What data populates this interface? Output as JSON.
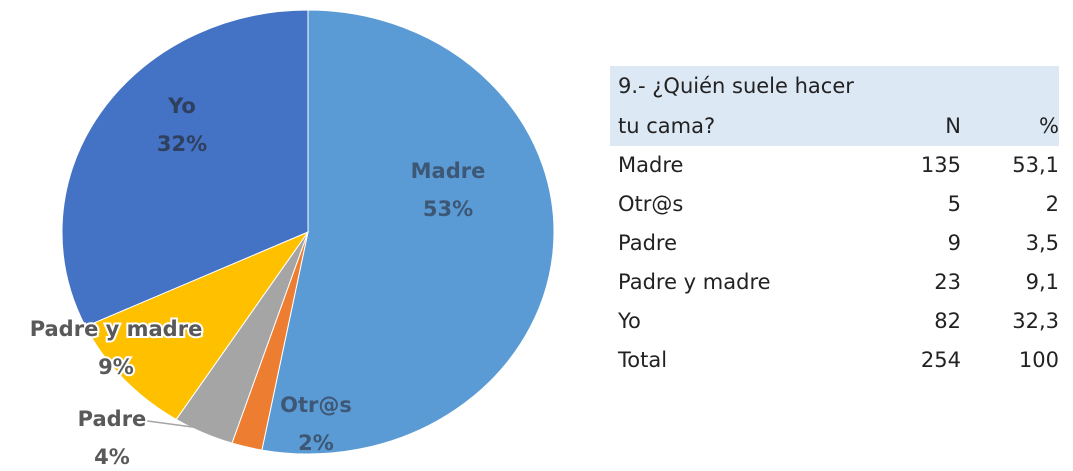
{
  "chart_data": {
    "type": "pie",
    "categories": [
      "Madre",
      "Otr@s",
      "Padre",
      "Padre y madre",
      "Yo"
    ],
    "values": [
      53,
      2,
      4,
      9,
      32
    ],
    "value_labels": [
      "53%",
      "2%",
      "4%",
      "9%",
      "32%"
    ],
    "colors": [
      "#5b9bd5",
      "#ed7d31",
      "#a5a5a5",
      "#ffc000",
      "#4472c4"
    ]
  },
  "table": {
    "header": [
      "9.- ¿Quién suele hacer tu cama?",
      "N",
      "%"
    ],
    "rows": [
      [
        "Madre",
        "135",
        "53,1"
      ],
      [
        "Otr@s",
        "5",
        "2"
      ],
      [
        "Padre",
        "9",
        "3,5"
      ],
      [
        "Padre y madre",
        "23",
        "9,1"
      ],
      [
        "Yo",
        "82",
        "32,3"
      ],
      [
        "Total",
        "254",
        "100"
      ]
    ]
  }
}
